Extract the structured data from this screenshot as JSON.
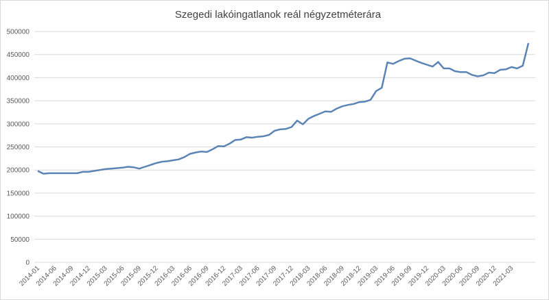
{
  "chart_data": {
    "type": "line",
    "title": "Szegedi lakóingatlanok reál négyzetméterára",
    "categories": [
      "2014-01",
      null,
      null,
      "2014-06",
      null,
      null,
      "2014-09",
      null,
      null,
      "2014-12",
      null,
      null,
      "2015-03",
      null,
      null,
      "2015-06",
      null,
      null,
      "2015-09",
      null,
      null,
      "2015-12",
      null,
      null,
      "2016-03",
      null,
      null,
      "2016-06",
      null,
      null,
      "2016-09",
      null,
      null,
      "2016-12",
      null,
      null,
      "2017-03",
      null,
      null,
      "2017-06",
      null,
      null,
      "2017-09",
      null,
      null,
      "2017-12",
      null,
      null,
      "2018-03",
      null,
      null,
      "2018-06",
      null,
      null,
      "2018-09",
      null,
      null,
      "2018-12",
      null,
      null,
      "2019-03",
      null,
      null,
      "2019-06",
      null,
      null,
      "2019-09",
      null,
      null,
      "2019-12",
      null,
      null,
      "2020-03",
      null,
      null,
      "2020-06",
      null,
      null,
      "2020-09",
      null,
      null,
      "2020-12",
      null,
      null,
      "2021-03",
      null,
      null,
      null
    ],
    "values": [
      198000,
      192000,
      193000,
      193000,
      193000,
      193000,
      193000,
      193000,
      196000,
      196000,
      198000,
      200000,
      202000,
      203000,
      204000,
      205000,
      207000,
      206000,
      203000,
      207000,
      211000,
      215000,
      218000,
      219000,
      221000,
      223000,
      228000,
      235000,
      238000,
      240000,
      239000,
      245000,
      252000,
      251000,
      257000,
      265000,
      266000,
      271000,
      270000,
      272000,
      273000,
      276000,
      285000,
      288000,
      289000,
      293000,
      307000,
      299000,
      311000,
      317000,
      322000,
      327000,
      326000,
      333000,
      338000,
      341000,
      343000,
      347000,
      348000,
      352000,
      371000,
      378000,
      433000,
      430000,
      436000,
      441000,
      442000,
      437000,
      432000,
      428000,
      424000,
      434000,
      420000,
      420000,
      414000,
      412000,
      412000,
      406000,
      403000,
      405000,
      411000,
      410000,
      417000,
      418000,
      423000,
      420000,
      426000,
      475000
    ],
    "color": "#5a84b6",
    "ylim": [
      0,
      500000
    ],
    "yticks": [
      0,
      50000,
      100000,
      150000,
      200000,
      250000,
      300000,
      350000,
      400000,
      450000,
      500000
    ],
    "grid": true
  }
}
